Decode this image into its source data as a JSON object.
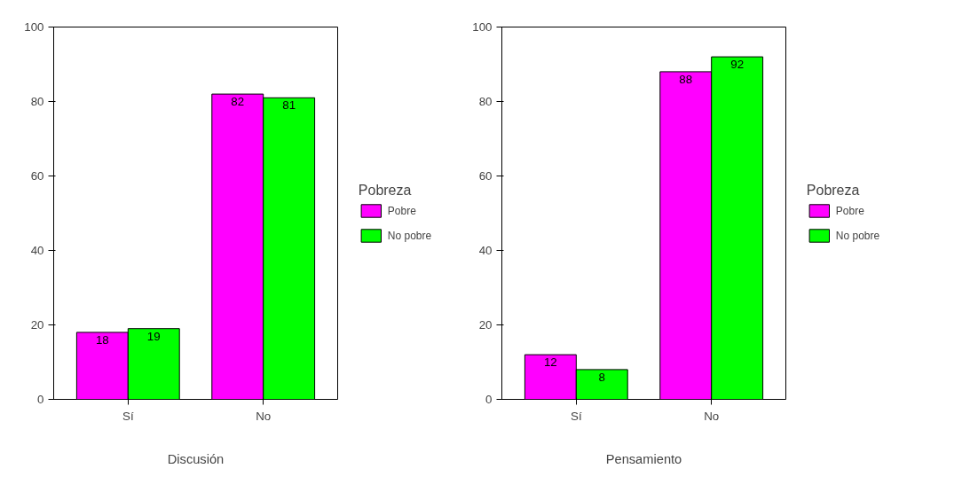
{
  "chart_data": [
    {
      "type": "bar",
      "xlabel": "Discusión",
      "legend_title": "Pobreza",
      "categories": [
        "Sí",
        "No"
      ],
      "series": [
        {
          "name": "Pobre",
          "color": "#ff00ff",
          "values": [
            18,
            82
          ]
        },
        {
          "name": "No pobre",
          "color": "#00ff00",
          "values": [
            19,
            81
          ]
        }
      ],
      "ylim": [
        0,
        100
      ],
      "yticks": [
        0,
        20,
        40,
        60,
        80,
        100
      ],
      "data_labels": true,
      "grid": false,
      "legend": "right"
    },
    {
      "type": "bar",
      "xlabel": "Pensamiento",
      "legend_title": "Pobreza",
      "categories": [
        "Sí",
        "No"
      ],
      "series": [
        {
          "name": "Pobre",
          "color": "#ff00ff",
          "values": [
            12,
            88
          ]
        },
        {
          "name": "No pobre",
          "color": "#00ff00",
          "values": [
            8,
            92
          ]
        }
      ],
      "ylim": [
        0,
        100
      ],
      "yticks": [
        0,
        20,
        40,
        60,
        80,
        100
      ],
      "data_labels": true,
      "grid": false,
      "legend": "right"
    }
  ]
}
